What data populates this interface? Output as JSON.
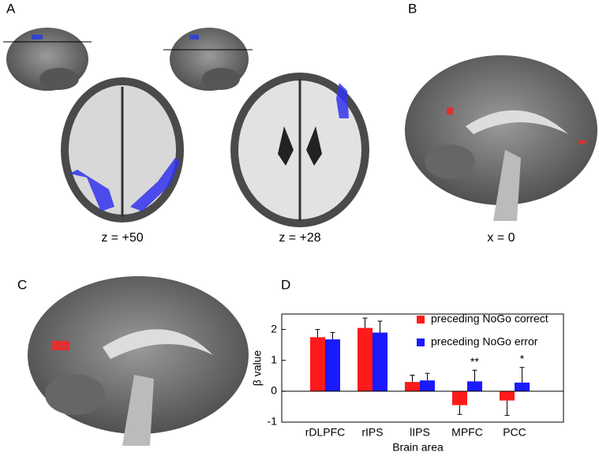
{
  "figure": {
    "panel_labels": [
      "A",
      "B",
      "C",
      "D"
    ],
    "captions": [
      "z = +50",
      "z = +28",
      "x = 0"
    ]
  },
  "chart_data": {
    "type": "bar",
    "x_label": "Brain area",
    "y_label": "β value",
    "categories": [
      "rDLPFC",
      "rIPS",
      "lIPS",
      "MPFC",
      "PCC"
    ],
    "series": [
      {
        "name": "preceding NoGo correct",
        "color": "#ff1a1a",
        "values": [
          1.75,
          2.05,
          0.3,
          -0.45,
          -0.3
        ],
        "errors": [
          0.25,
          0.32,
          0.22,
          0.3,
          0.48
        ]
      },
      {
        "name": "preceding NoGo error",
        "color": "#1a1aff",
        "values": [
          1.68,
          1.9,
          0.35,
          0.32,
          0.28
        ],
        "errors": [
          0.22,
          0.37,
          0.23,
          0.36,
          0.49
        ]
      }
    ],
    "annotations": [
      null,
      null,
      null,
      "**",
      "*"
    ],
    "ylim": [
      -1,
      2.5
    ],
    "yticks": [
      -1,
      0,
      1,
      2
    ],
    "legend": "upper right"
  }
}
